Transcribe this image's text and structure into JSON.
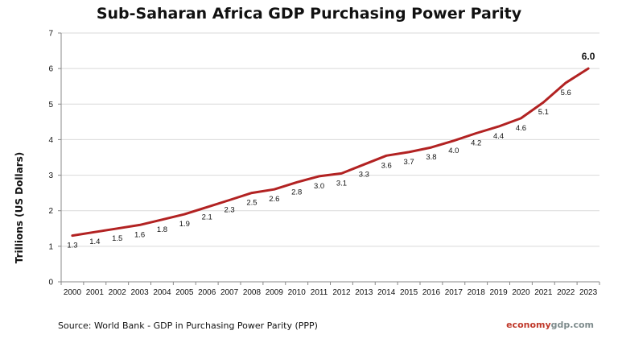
{
  "chart_data": {
    "type": "line",
    "title": "Sub-Saharan Africa GDP Purchasing Power Parity",
    "ylabel": "Trillions (US Dollars)",
    "xlabel": "",
    "ylim": [
      0,
      7
    ],
    "yticks": [
      "0",
      "1",
      "2",
      "3",
      "4",
      "5",
      "6",
      "7"
    ],
    "categories": [
      "2000",
      "2001",
      "2002",
      "2003",
      "2004",
      "2005",
      "2006",
      "2007",
      "2008",
      "2009",
      "2010",
      "2011",
      "2012",
      "2013",
      "2014",
      "2015",
      "2016",
      "2017",
      "2018",
      "2019",
      "2020",
      "2021",
      "2022",
      "2023"
    ],
    "values": [
      1.3,
      1.4,
      1.5,
      1.6,
      1.75,
      1.9,
      2.1,
      2.3,
      2.5,
      2.6,
      2.8,
      2.97,
      3.05,
      3.3,
      3.55,
      3.65,
      3.78,
      3.97,
      4.18,
      4.37,
      4.6,
      5.05,
      5.6,
      6.0
    ],
    "labels": [
      "1.3",
      "1.4",
      "1.5",
      "1.6",
      "1.8",
      "1.9",
      "2.1",
      "2.3",
      "2.5",
      "2.6",
      "2.8",
      "3.0",
      "3.1",
      "3.3",
      "3.6",
      "3.7",
      "3.8",
      "4.0",
      "4.2",
      "4.4",
      "4.6",
      "5.1",
      "5.6",
      "6.0"
    ],
    "grid": true,
    "line_color": "#b22222"
  },
  "source": "Source:  World Bank -  GDP  in Purchasing Power Parity (PPP)",
  "brand": {
    "part1": "economy",
    "part2": "gdp",
    "part3": ".com"
  }
}
